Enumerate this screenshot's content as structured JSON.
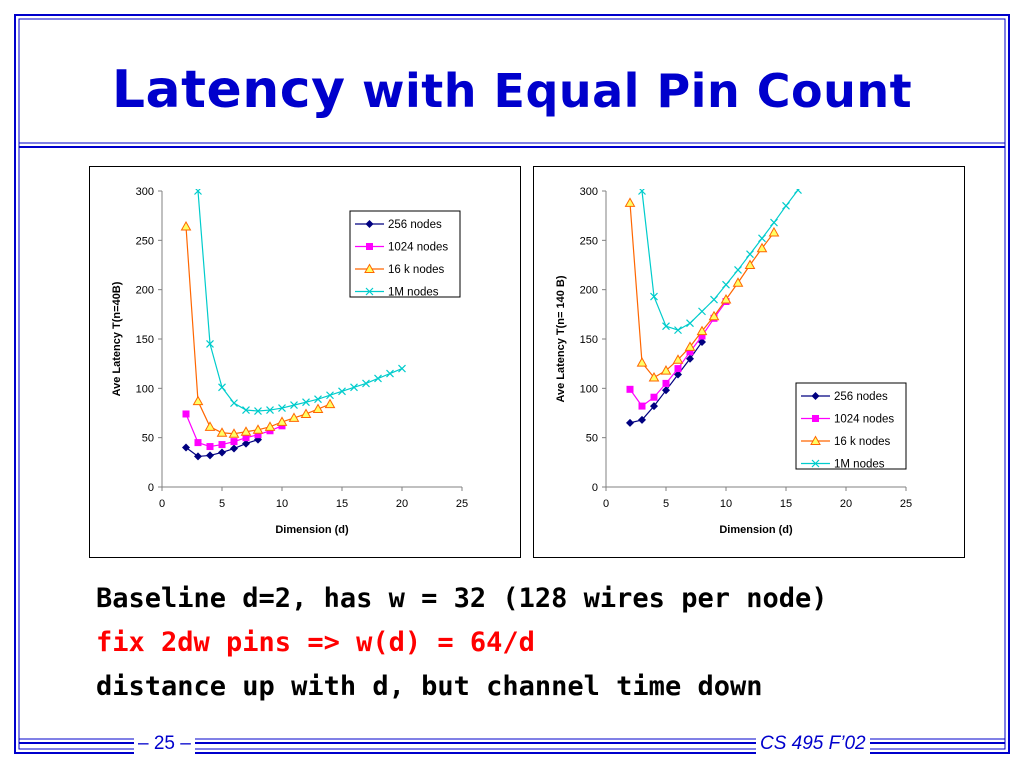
{
  "title": {
    "main": "Latency",
    "rest": " with Equal Pin Count"
  },
  "body": {
    "line1": "Baseline d=2, has w = 32   (128 wires per node)",
    "line2": "fix 2dw pins => w(d) = 64/d",
    "line3": "distance up with d, but channel time down"
  },
  "footer": {
    "page": "– 25 –",
    "course": "CS 495 F’02"
  },
  "colors": {
    "title": "#0000cc",
    "frame": "#0000cc",
    "highlight": "#ff0000"
  },
  "chart_data": [
    {
      "type": "line",
      "xlabel": "Dimension (d)",
      "ylabel": "Ave Latency T(n=40B)",
      "xlim": [
        0,
        25
      ],
      "ylim": [
        0,
        300
      ],
      "xticks": [
        0,
        5,
        10,
        15,
        20,
        25
      ],
      "yticks": [
        0,
        50,
        100,
        150,
        200,
        250,
        300
      ],
      "legend_position": "top-right",
      "series": [
        {
          "name": "256 nodes",
          "color": "#000080",
          "marker": "diamond",
          "x": [
            2,
            3,
            4,
            5,
            6,
            7,
            8
          ],
          "y": [
            40,
            31,
            32,
            35,
            39,
            44,
            48
          ]
        },
        {
          "name": "1024 nodes",
          "color": "#ff00ff",
          "marker": "square",
          "x": [
            2,
            3,
            4,
            5,
            6,
            7,
            8,
            9,
            10
          ],
          "y": [
            74,
            45,
            41,
            43,
            46,
            50,
            53,
            57,
            62
          ]
        },
        {
          "name": "16 k nodes",
          "color": "#ff6600",
          "marker": "triangle",
          "x": [
            2,
            3,
            4,
            5,
            6,
            7,
            8,
            9,
            10,
            11,
            12,
            13,
            14
          ],
          "y": [
            264,
            87,
            61,
            55,
            54,
            56,
            58,
            61,
            66,
            70,
            74,
            79,
            84
          ]
        },
        {
          "name": "1M nodes",
          "color": "#00cccc",
          "marker": "x",
          "x": [
            3,
            4,
            5,
            6,
            7,
            8,
            9,
            10,
            11,
            12,
            13,
            14,
            15,
            16,
            17,
            18,
            19,
            20
          ],
          "y": [
            300,
            145,
            101,
            85,
            78,
            77,
            78,
            80,
            83,
            86,
            89,
            93,
            97,
            101,
            105,
            110,
            115,
            120
          ]
        }
      ]
    },
    {
      "type": "line",
      "xlabel": "Dimension (d)",
      "ylabel": "Ave Latency T(n= 140 B)",
      "xlim": [
        0,
        25
      ],
      "ylim": [
        0,
        300
      ],
      "xticks": [
        0,
        5,
        10,
        15,
        20,
        25
      ],
      "yticks": [
        0,
        50,
        100,
        150,
        200,
        250,
        300
      ],
      "legend_position": "bottom-right",
      "series": [
        {
          "name": "256 nodes",
          "color": "#000080",
          "marker": "diamond",
          "x": [
            2,
            3,
            4,
            5,
            6,
            7,
            8
          ],
          "y": [
            65,
            68,
            82,
            98,
            114,
            130,
            147
          ]
        },
        {
          "name": "1024 nodes",
          "color": "#ff00ff",
          "marker": "square",
          "x": [
            2,
            3,
            4,
            5,
            6,
            7,
            8,
            9,
            10
          ],
          "y": [
            99,
            82,
            91,
            105,
            120,
            137,
            153,
            171,
            188
          ]
        },
        {
          "name": "16 k nodes",
          "color": "#ff6600",
          "marker": "triangle",
          "x": [
            2,
            3,
            4,
            5,
            6,
            7,
            8,
            9,
            10,
            11,
            12,
            13,
            14
          ],
          "y": [
            288,
            126,
            111,
            118,
            129,
            142,
            158,
            173,
            190,
            207,
            225,
            242,
            258
          ]
        },
        {
          "name": "1M nodes",
          "color": "#00cccc",
          "marker": "x",
          "x": [
            3,
            4,
            5,
            6,
            7,
            8,
            9,
            10,
            11,
            12,
            13,
            14,
            15,
            16
          ],
          "y": [
            300,
            193,
            163,
            159,
            166,
            178,
            190,
            205,
            220,
            236,
            252,
            268,
            285,
            301
          ]
        }
      ]
    }
  ]
}
